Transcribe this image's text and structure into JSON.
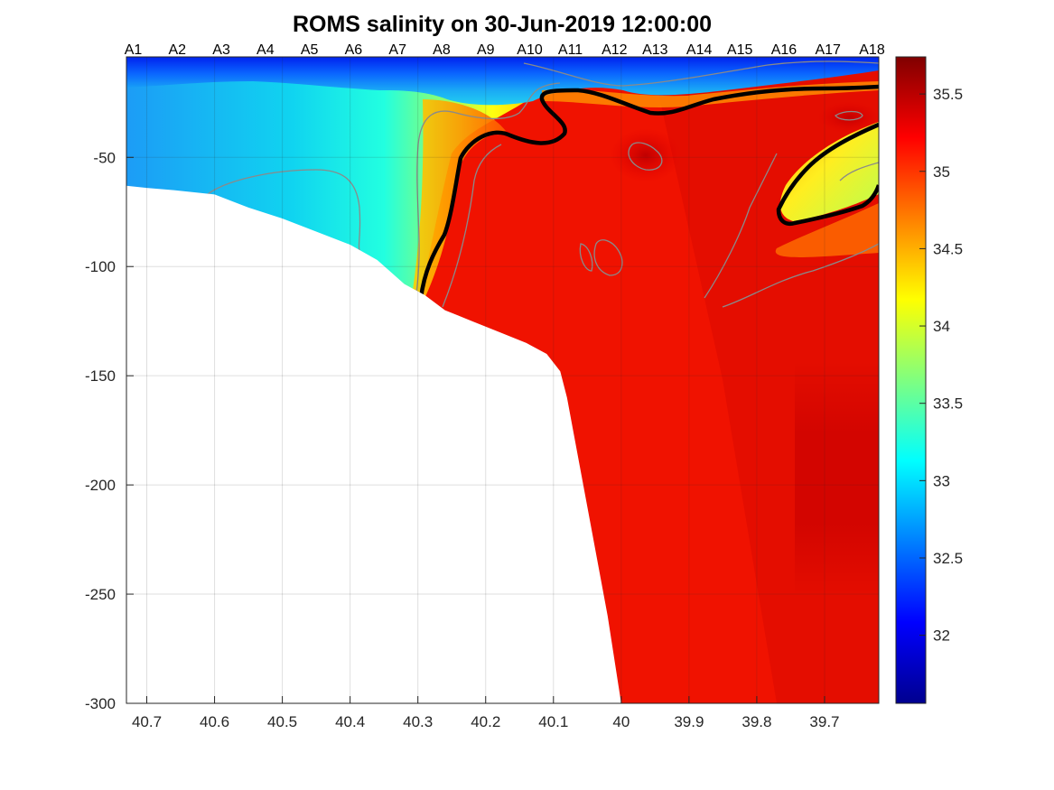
{
  "chart_data": {
    "type": "heatmap",
    "title": "ROMS salinity on 30-Jun-2019 12:00:00",
    "xlabel": "",
    "ylabel": "",
    "xlim": [
      40.73,
      39.62
    ],
    "ylim": [
      -300,
      -4
    ],
    "x_reversed": true,
    "x_ticks": [
      40.7,
      40.6,
      40.5,
      40.4,
      40.3,
      40.2,
      40.1,
      40,
      39.9,
      39.8,
      39.7
    ],
    "x_tick_labels": [
      "40.7",
      "40.6",
      "40.5",
      "40.4",
      "40.3",
      "40.2",
      "40.1",
      "40",
      "39.9",
      "39.8",
      "39.7"
    ],
    "y_ticks": [
      -300,
      -250,
      -200,
      -150,
      -100,
      -50
    ],
    "y_tick_labels": [
      "-300",
      "-250",
      "-200",
      "-150",
      "-100",
      "-50"
    ],
    "grid": true,
    "stations": {
      "labels": [
        "A1",
        "A2",
        "A3",
        "A4",
        "A5",
        "A6",
        "A7",
        "A8",
        "A9",
        "A10",
        "A11",
        "A12",
        "A13",
        "A14",
        "A15",
        "A16",
        "A17",
        "A18"
      ],
      "positions": [
        40.72,
        40.655,
        40.59,
        40.525,
        40.46,
        40.395,
        40.33,
        40.265,
        40.2,
        40.135,
        40.075,
        40.01,
        39.95,
        39.885,
        39.825,
        39.76,
        39.695,
        39.63
      ]
    },
    "colorbar": {
      "colormap": "jet",
      "range": [
        31.56,
        35.74
      ],
      "ticks": [
        32,
        32.5,
        33,
        33.5,
        34,
        34.5,
        35,
        35.5
      ],
      "tick_labels": [
        "32",
        "32.5",
        "33",
        "33.5",
        "34",
        "34.5",
        "35",
        "35.5"
      ]
    },
    "salinity_contour_levels": [
      33,
      34,
      35.5
    ],
    "highlighted_isohaline": 34.5,
    "bottom_depth_profile": {
      "x": [
        40.73,
        40.7,
        40.66,
        40.6,
        40.55,
        40.5,
        40.45,
        40.4,
        40.36,
        40.32,
        40.29,
        40.26,
        40.22,
        40.18,
        40.14,
        40.11,
        40.09,
        40.08,
        40.05,
        40.02,
        40,
        39.62
      ],
      "depth": [
        -63,
        -64,
        -65,
        -67,
        -73,
        -78,
        -84,
        -90,
        -97,
        -108,
        -113,
        -120,
        -125,
        -130,
        -135,
        -140,
        -148,
        -160,
        -210,
        -260,
        -300,
        -300
      ]
    },
    "sample_fields": {
      "x": [
        40.73,
        40.6,
        40.5,
        40.4,
        40.3,
        40.2,
        40.1,
        40.0,
        39.9,
        39.8,
        39.7,
        39.62
      ],
      "depth": [
        -5,
        -15,
        -25,
        -40,
        -60,
        -80,
        -100,
        -130,
        -200,
        -300
      ],
      "salinity": [
        [
          31.9,
          31.8,
          31.8,
          31.8,
          32.0,
          32.2,
          32.4,
          32.9,
          33.5,
          33.8,
          34.0,
          34.1
        ],
        [
          32.1,
          32.0,
          31.9,
          31.9,
          32.3,
          32.7,
          33.4,
          34.8,
          35.1,
          35.2,
          35.2,
          35.2
        ],
        [
          32.2,
          32.2,
          32.3,
          32.5,
          33.2,
          34.2,
          34.8,
          35.2,
          35.3,
          35.3,
          35.4,
          35.4
        ],
        [
          32.4,
          32.5,
          32.9,
          33.2,
          34.1,
          34.9,
          35.2,
          35.3,
          35.4,
          35.3,
          35.2,
          35.1
        ],
        [
          32.6,
          32.8,
          33.1,
          33.4,
          34.3,
          35.0,
          35.2,
          35.2,
          35.2,
          35.1,
          34.6,
          34.1
        ],
        [
          null,
          null,
          33.2,
          33.5,
          34.5,
          35.1,
          35.2,
          35.2,
          35.2,
          35.1,
          34.9,
          34.7
        ],
        [
          null,
          null,
          null,
          null,
          34.6,
          35.1,
          35.1,
          35.2,
          35.2,
          35.2,
          35.1,
          35.0
        ],
        [
          null,
          null,
          null,
          null,
          null,
          35.1,
          35.1,
          35.2,
          35.2,
          35.2,
          35.2,
          35.1
        ],
        [
          null,
          null,
          null,
          null,
          null,
          null,
          null,
          35.2,
          35.3,
          35.3,
          35.3,
          35.3
        ],
        [
          null,
          null,
          null,
          null,
          null,
          null,
          null,
          35.2,
          35.3,
          35.3,
          35.3,
          35.3
        ]
      ]
    }
  }
}
